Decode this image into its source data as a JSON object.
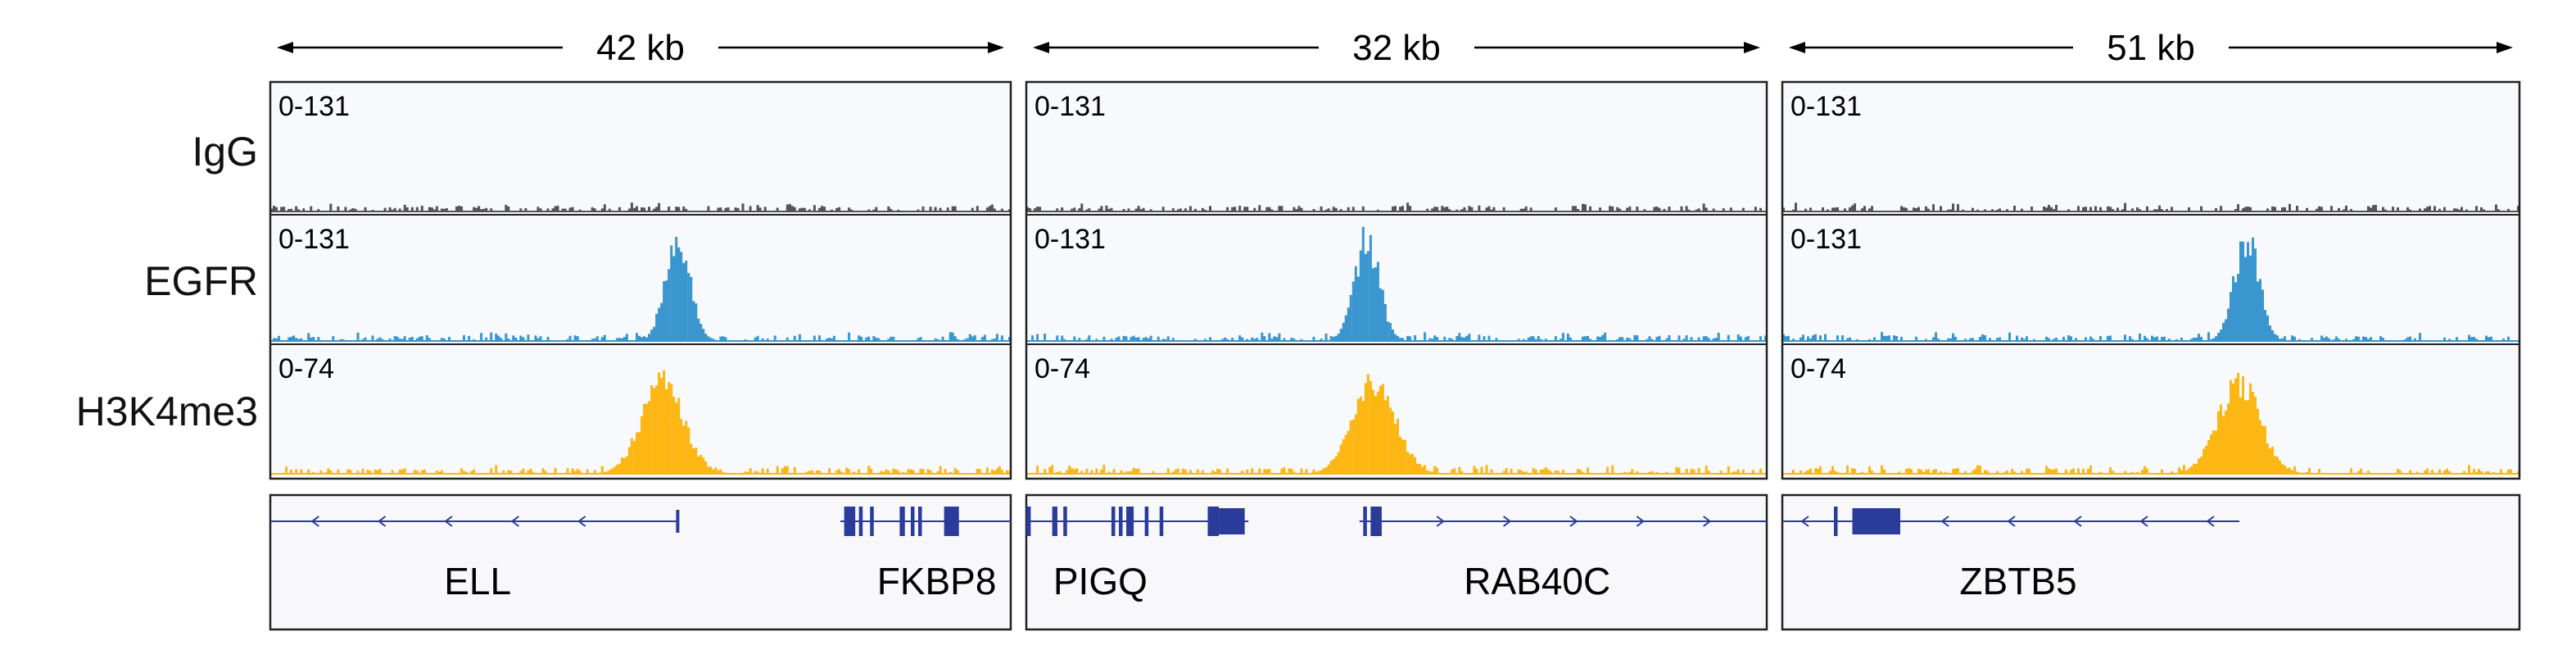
{
  "track_labels": [
    "IgG",
    "EGFR",
    "H3K4me3"
  ],
  "colors": {
    "igg": "#555555",
    "egfr": "#3b96cf",
    "h3k4me3": "#fcb714",
    "gene": "#2b3b9a",
    "frame": "#222222",
    "panel_bg": "#f8f9fc"
  },
  "regions": [
    {
      "span_label": "42 kb",
      "tracks": [
        {
          "range": "0-131",
          "peak": null
        },
        {
          "range": "0-131",
          "peak": 0.55
        },
        {
          "range": "0-74",
          "peak": 0.53
        }
      ],
      "genes": [
        {
          "name": "ELL",
          "strand": "-"
        },
        {
          "name": "FKBP8",
          "strand": "-"
        }
      ]
    },
    {
      "span_label": "32 kb",
      "tracks": [
        {
          "range": "0-131",
          "peak": null
        },
        {
          "range": "0-131",
          "peak": 0.46
        },
        {
          "range": "0-74",
          "peak": 0.47
        }
      ],
      "genes": [
        {
          "name": "PIGQ",
          "strand": "+"
        },
        {
          "name": "RAB40C",
          "strand": "+"
        }
      ]
    },
    {
      "span_label": "51 kb",
      "tracks": [
        {
          "range": "0-131",
          "peak": null
        },
        {
          "range": "0-131",
          "peak": 0.63
        },
        {
          "range": "0-74",
          "peak": 0.62
        }
      ],
      "genes": [
        {
          "name": "ZBTB5",
          "strand": "-"
        }
      ]
    }
  ]
}
